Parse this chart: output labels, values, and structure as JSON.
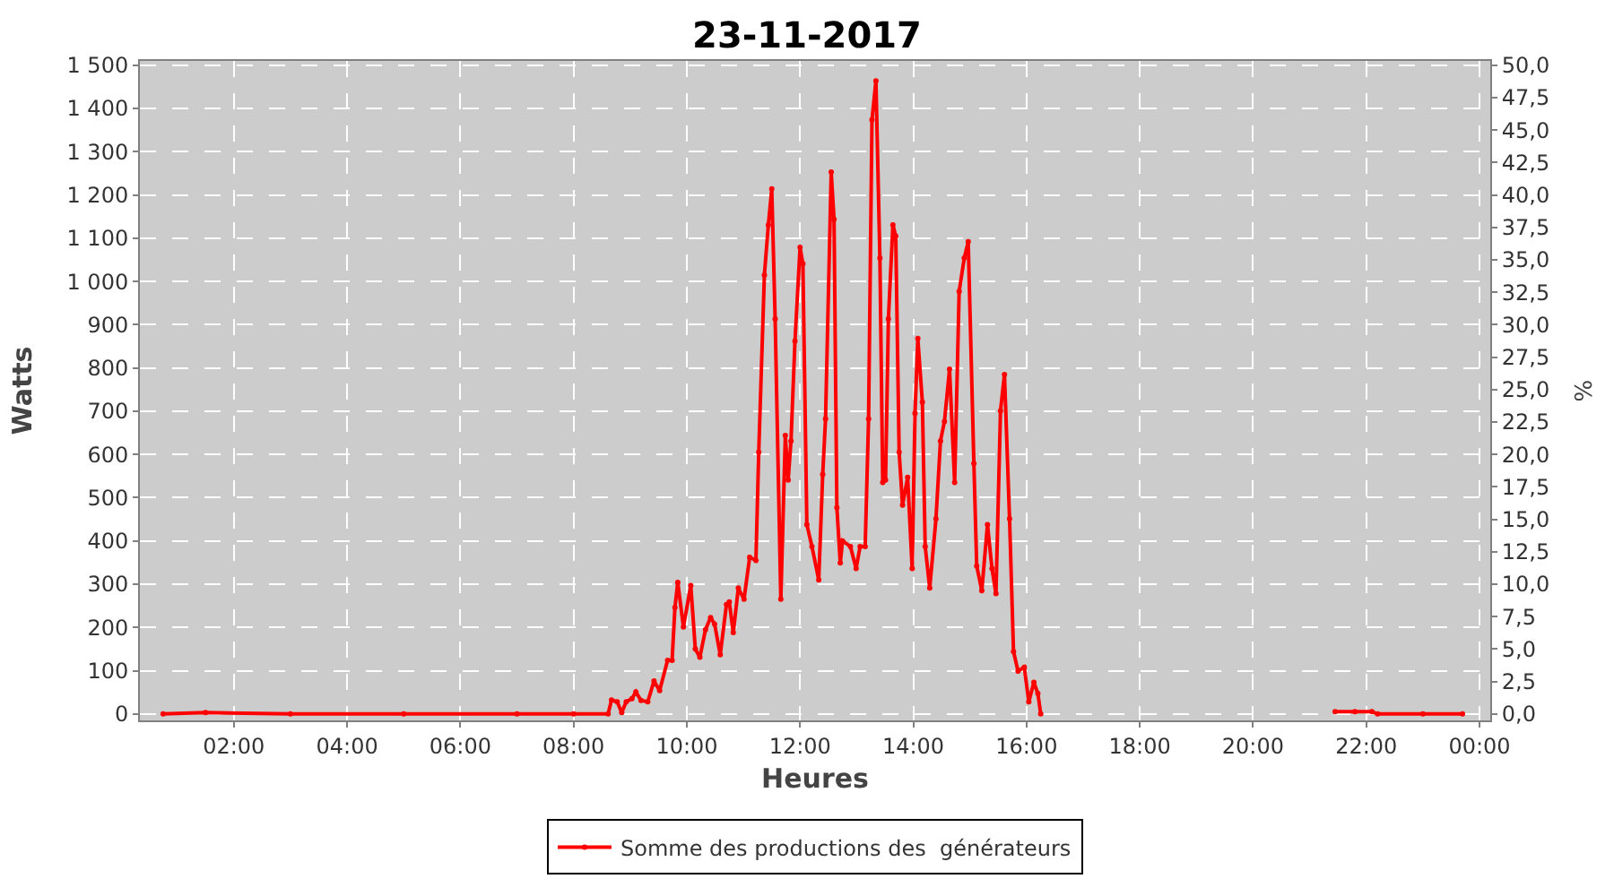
{
  "chart_data": {
    "type": "line",
    "title": "23-11-2017",
    "xlabel": "Heures",
    "ylabel": "Watts",
    "y2label": "%",
    "xlim": [
      0.34,
      24.19
    ],
    "ylim": [
      -15,
      1510
    ],
    "y2lim": [
      -0.5,
      50.333
    ],
    "xticks": [
      {
        "value": 2,
        "label": "02:00"
      },
      {
        "value": 4,
        "label": "04:00"
      },
      {
        "value": 6,
        "label": "06:00"
      },
      {
        "value": 8,
        "label": "08:00"
      },
      {
        "value": 10,
        "label": "10:00"
      },
      {
        "value": 12,
        "label": "12:00"
      },
      {
        "value": 14,
        "label": "14:00"
      },
      {
        "value": 16,
        "label": "16:00"
      },
      {
        "value": 18,
        "label": "18:00"
      },
      {
        "value": 20,
        "label": "20:00"
      },
      {
        "value": 22,
        "label": "22:00"
      },
      {
        "value": 24,
        "label": "00:00"
      }
    ],
    "yticks": [
      0,
      100,
      200,
      300,
      400,
      500,
      600,
      700,
      800,
      900,
      {
        "value": 1000,
        "label": "1 000"
      },
      {
        "value": 1100,
        "label": "1 100"
      },
      {
        "value": 1200,
        "label": "1 200"
      },
      {
        "value": 1300,
        "label": "1 300"
      },
      {
        "value": 1400,
        "label": "1 400"
      },
      {
        "value": 1500,
        "label": "1 500"
      }
    ],
    "y2ticks": [
      {
        "value": 0,
        "label": "0,0"
      },
      {
        "value": 2.5,
        "label": "2,5"
      },
      {
        "value": 5,
        "label": "5,0"
      },
      {
        "value": 7.5,
        "label": "7,5"
      },
      {
        "value": 10,
        "label": "10,0"
      },
      {
        "value": 12.5,
        "label": "12,5"
      },
      {
        "value": 15,
        "label": "15,0"
      },
      {
        "value": 17.5,
        "label": "17,5"
      },
      {
        "value": 20,
        "label": "20,0"
      },
      {
        "value": 22.5,
        "label": "22,5"
      },
      {
        "value": 25,
        "label": "25,0"
      },
      {
        "value": 27.5,
        "label": "27,5"
      },
      {
        "value": 30,
        "label": "30,0"
      },
      {
        "value": 32.5,
        "label": "32,5"
      },
      {
        "value": 35,
        "label": "35,0"
      },
      {
        "value": 37.5,
        "label": "37,5"
      },
      {
        "value": 40,
        "label": "40,0"
      },
      {
        "value": 42.5,
        "label": "42,5"
      },
      {
        "value": 45,
        "label": "45,0"
      },
      {
        "value": 47.5,
        "label": "47,5"
      },
      {
        "value": 50,
        "label": "50,0"
      }
    ],
    "grid": true,
    "legend": "bottom",
    "marker": "circle",
    "line_style": "solid",
    "series": [
      {
        "name": "Somme des productions des  générateurs",
        "color": "#ff0000",
        "x": [
          0.75,
          1.5,
          3,
          5,
          7,
          8,
          8.61,
          8.67,
          8.77,
          8.85,
          8.93,
          9.03,
          9.1,
          9.19,
          9.31,
          9.42,
          9.52,
          9.66,
          9.74,
          9.79,
          9.84,
          9.94,
          10.07,
          10.15,
          10.23,
          10.33,
          10.42,
          10.49,
          10.59,
          10.7,
          10.75,
          10.82,
          10.91,
          11.01,
          11.11,
          11.22,
          11.27,
          11.37,
          11.44,
          11.5,
          11.56,
          11.66,
          11.74,
          11.79,
          11.84,
          11.91,
          12.0,
          12.05,
          12.12,
          12.21,
          12.33,
          12.4,
          12.45,
          12.55,
          12.6,
          12.65,
          12.71,
          12.75,
          12.89,
          12.99,
          13.06,
          13.15,
          13.21,
          13.27,
          13.34,
          13.41,
          13.46,
          13.51,
          13.56,
          13.64,
          13.69,
          13.75,
          13.81,
          13.9,
          13.98,
          14.03,
          14.08,
          14.16,
          14.21,
          14.29,
          14.4,
          14.48,
          14.55,
          14.64,
          14.73,
          14.81,
          14.9,
          14.97,
          15.07,
          15.12,
          15.21,
          15.31,
          15.39,
          15.46,
          15.54,
          15.61,
          15.7,
          15.77,
          15.85,
          15.96,
          16.04,
          16.13,
          16.2,
          16.25,
          18.5,
          21.45,
          21.8,
          22.1,
          22.2,
          23,
          23.7
        ],
        "values": [
          0,
          3,
          0,
          0,
          0,
          0,
          0,
          32,
          28,
          3,
          28,
          35,
          51,
          31,
          28,
          76,
          54,
          124,
          124,
          246,
          304,
          201,
          297,
          150,
          131,
          195,
          223,
          208,
          137,
          253,
          259,
          188,
          291,
          265,
          362,
          355,
          605,
          1015,
          1131,
          1214,
          913,
          265,
          644,
          541,
          631,
          862,
          1079,
          1041,
          438,
          387,
          310,
          554,
          682,
          1253,
          1144,
          477,
          349,
          400,
          387,
          336,
          387,
          387,
          682,
          1374,
          1464,
          1054,
          535,
          541,
          913,
          1131,
          1105,
          605,
          483,
          547,
          336,
          695,
          868,
          721,
          387,
          291,
          451,
          631,
          676,
          797,
          535,
          977,
          1054,
          1092,
          579,
          342,
          285,
          438,
          336,
          278,
          701,
          785,
          451,
          144,
          99,
          108,
          28,
          73,
          47,
          0,
          null,
          5,
          5,
          5,
          0,
          0,
          0
        ]
      }
    ]
  }
}
